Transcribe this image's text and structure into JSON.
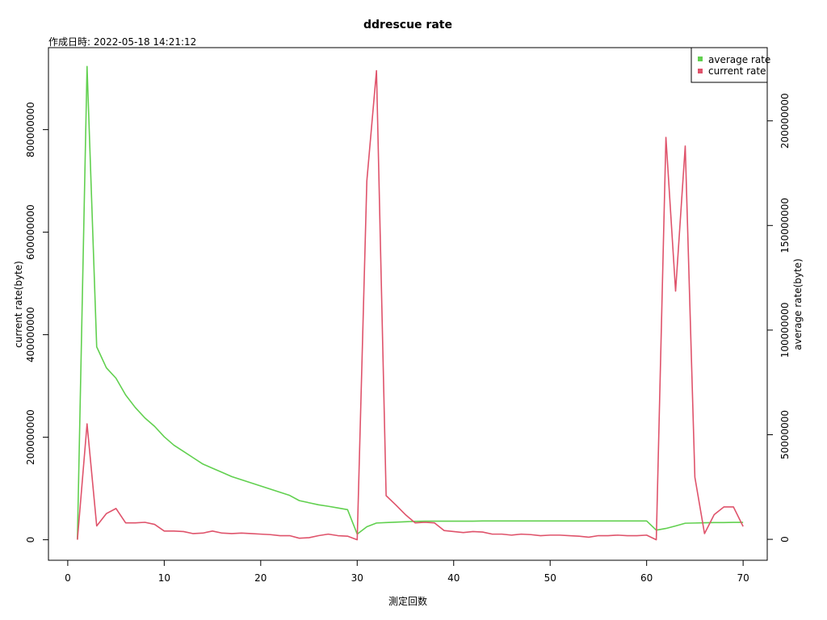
{
  "chart_data": {
    "type": "line",
    "title": "ddrescue rate",
    "subtitle": "作成日時: 2022-05-18 14:21:12",
    "xlabel": "測定回数",
    "ylabel_left": "current rate(byte)",
    "ylabel_right": "average rate(byte)",
    "xlim": [
      -2,
      72.5
    ],
    "ylim_left": [
      -40000000,
      960000000
    ],
    "ylim_right": [
      -10000000,
      235000000
    ],
    "x_ticks": [
      0,
      10,
      20,
      30,
      40,
      50,
      60,
      70
    ],
    "y_left_ticks": [
      0,
      200000000,
      400000000,
      600000000,
      800000000
    ],
    "y_right_ticks": [
      0,
      50000000,
      100000000,
      150000000,
      200000000
    ],
    "grid": false,
    "legend_position": "top-right",
    "series": [
      {
        "name": "current rate",
        "axis": "left",
        "color": "#DF536B",
        "x": [
          1,
          2,
          3,
          4,
          5,
          6,
          7,
          8,
          9,
          10,
          11,
          12,
          13,
          14,
          15,
          16,
          17,
          18,
          19,
          20,
          21,
          22,
          23,
          24,
          25,
          26,
          27,
          28,
          29,
          30,
          31,
          32,
          33,
          34,
          35,
          36,
          37,
          38,
          39,
          40,
          41,
          42,
          43,
          44,
          45,
          46,
          47,
          48,
          49,
          50,
          51,
          52,
          53,
          54,
          55,
          56,
          57,
          58,
          59,
          60,
          61,
          62,
          63,
          64,
          65,
          66,
          67,
          68,
          69,
          70
        ],
        "values": [
          0,
          226000000,
          27000000,
          51000000,
          61000000,
          33000000,
          33000000,
          34000000,
          30000000,
          17000000,
          17000000,
          16000000,
          12000000,
          13000000,
          17000000,
          13000000,
          12000000,
          13000000,
          12000000,
          11000000,
          10000000,
          8000000,
          8000000,
          3000000,
          4000000,
          8000000,
          11000000,
          8000000,
          7000000,
          0,
          700000000,
          915000000,
          86000000,
          68000000,
          49000000,
          33000000,
          34000000,
          33000000,
          18000000,
          16000000,
          14000000,
          16000000,
          15000000,
          11000000,
          11000000,
          9000000,
          11000000,
          10000000,
          8000000,
          9000000,
          9000000,
          8000000,
          7000000,
          5000000,
          8000000,
          8000000,
          9000000,
          8000000,
          8000000,
          9000000,
          0,
          785000000,
          485000000,
          768000000,
          122000000,
          12000000,
          49000000,
          64000000,
          64000000,
          26000000
        ]
      },
      {
        "name": "average rate",
        "axis": "right",
        "color": "#61D04F",
        "x": [
          1,
          2,
          3,
          4,
          5,
          6,
          7,
          8,
          9,
          10,
          11,
          12,
          13,
          14,
          15,
          16,
          17,
          18,
          19,
          20,
          21,
          22,
          23,
          24,
          25,
          26,
          27,
          28,
          29,
          30,
          31,
          32,
          33,
          34,
          35,
          36,
          37,
          38,
          39,
          40,
          41,
          42,
          43,
          44,
          45,
          46,
          47,
          48,
          49,
          50,
          51,
          52,
          53,
          54,
          55,
          56,
          57,
          58,
          59,
          60,
          61,
          62,
          63,
          64,
          65,
          66,
          67,
          68,
          69,
          70
        ],
        "values": [
          0,
          226000000,
          92000000,
          82000000,
          77000000,
          69000000,
          63000000,
          58000000,
          54000000,
          49000000,
          45000000,
          42000000,
          39000000,
          36000000,
          34000000,
          32000000,
          30000000,
          28500000,
          27000000,
          25500000,
          24000000,
          22500000,
          21000000,
          18500000,
          17500000,
          16500000,
          15800000,
          15000000,
          14200000,
          2500000,
          6000000,
          7800000,
          8000000,
          8200000,
          8400000,
          8600000,
          8700000,
          8700000,
          8700000,
          8700000,
          8700000,
          8700000,
          8800000,
          8800000,
          8800000,
          8800000,
          8800000,
          8800000,
          8800000,
          8800000,
          8800000,
          8800000,
          8800000,
          8800000,
          8800000,
          8800000,
          8800000,
          8800000,
          8800000,
          8800000,
          4400000,
          5200000,
          6400000,
          7700000,
          7800000,
          7900000,
          8000000,
          8000000,
          8100000,
          8100000
        ]
      }
    ]
  }
}
